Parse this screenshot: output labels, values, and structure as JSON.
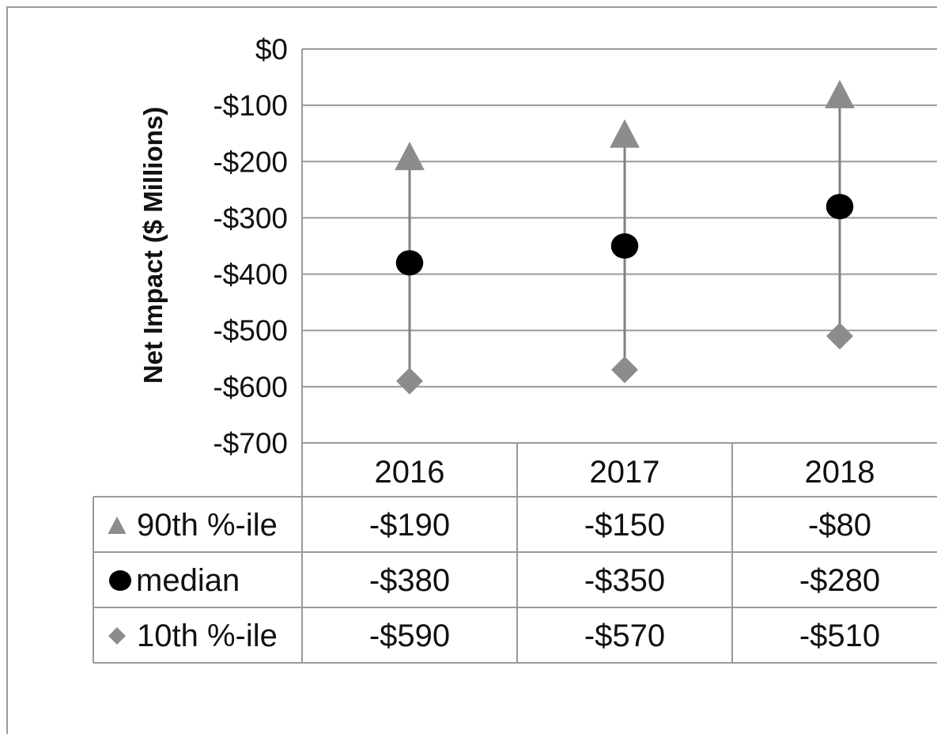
{
  "chart_data": {
    "type": "table",
    "ylabel": "Net Impact ($ Millions)",
    "y_ticks": [
      "$0",
      "-$100",
      "-$200",
      "-$300",
      "-$400",
      "-$500",
      "-$600",
      "-$700"
    ],
    "ylim": [
      -700,
      0
    ],
    "categories": [
      "2016",
      "2017",
      "2018"
    ],
    "grid": true,
    "legend": "data-table",
    "series": [
      {
        "name": "90th %-ile",
        "marker": "triangle",
        "color": "#8c8c8c",
        "values": [
          -190,
          -150,
          -80
        ],
        "labels": [
          "-$190",
          "-$150",
          "-$80"
        ]
      },
      {
        "name": "median",
        "marker": "circle",
        "color": "#000000",
        "values": [
          -380,
          -350,
          -280
        ],
        "labels": [
          "-$380",
          "-$350",
          "-$280"
        ]
      },
      {
        "name": "10th %-ile",
        "marker": "diamond",
        "color": "#8c8c8c",
        "values": [
          -590,
          -570,
          -510
        ],
        "labels": [
          "-$590",
          "-$570",
          "-$510"
        ]
      }
    ]
  }
}
